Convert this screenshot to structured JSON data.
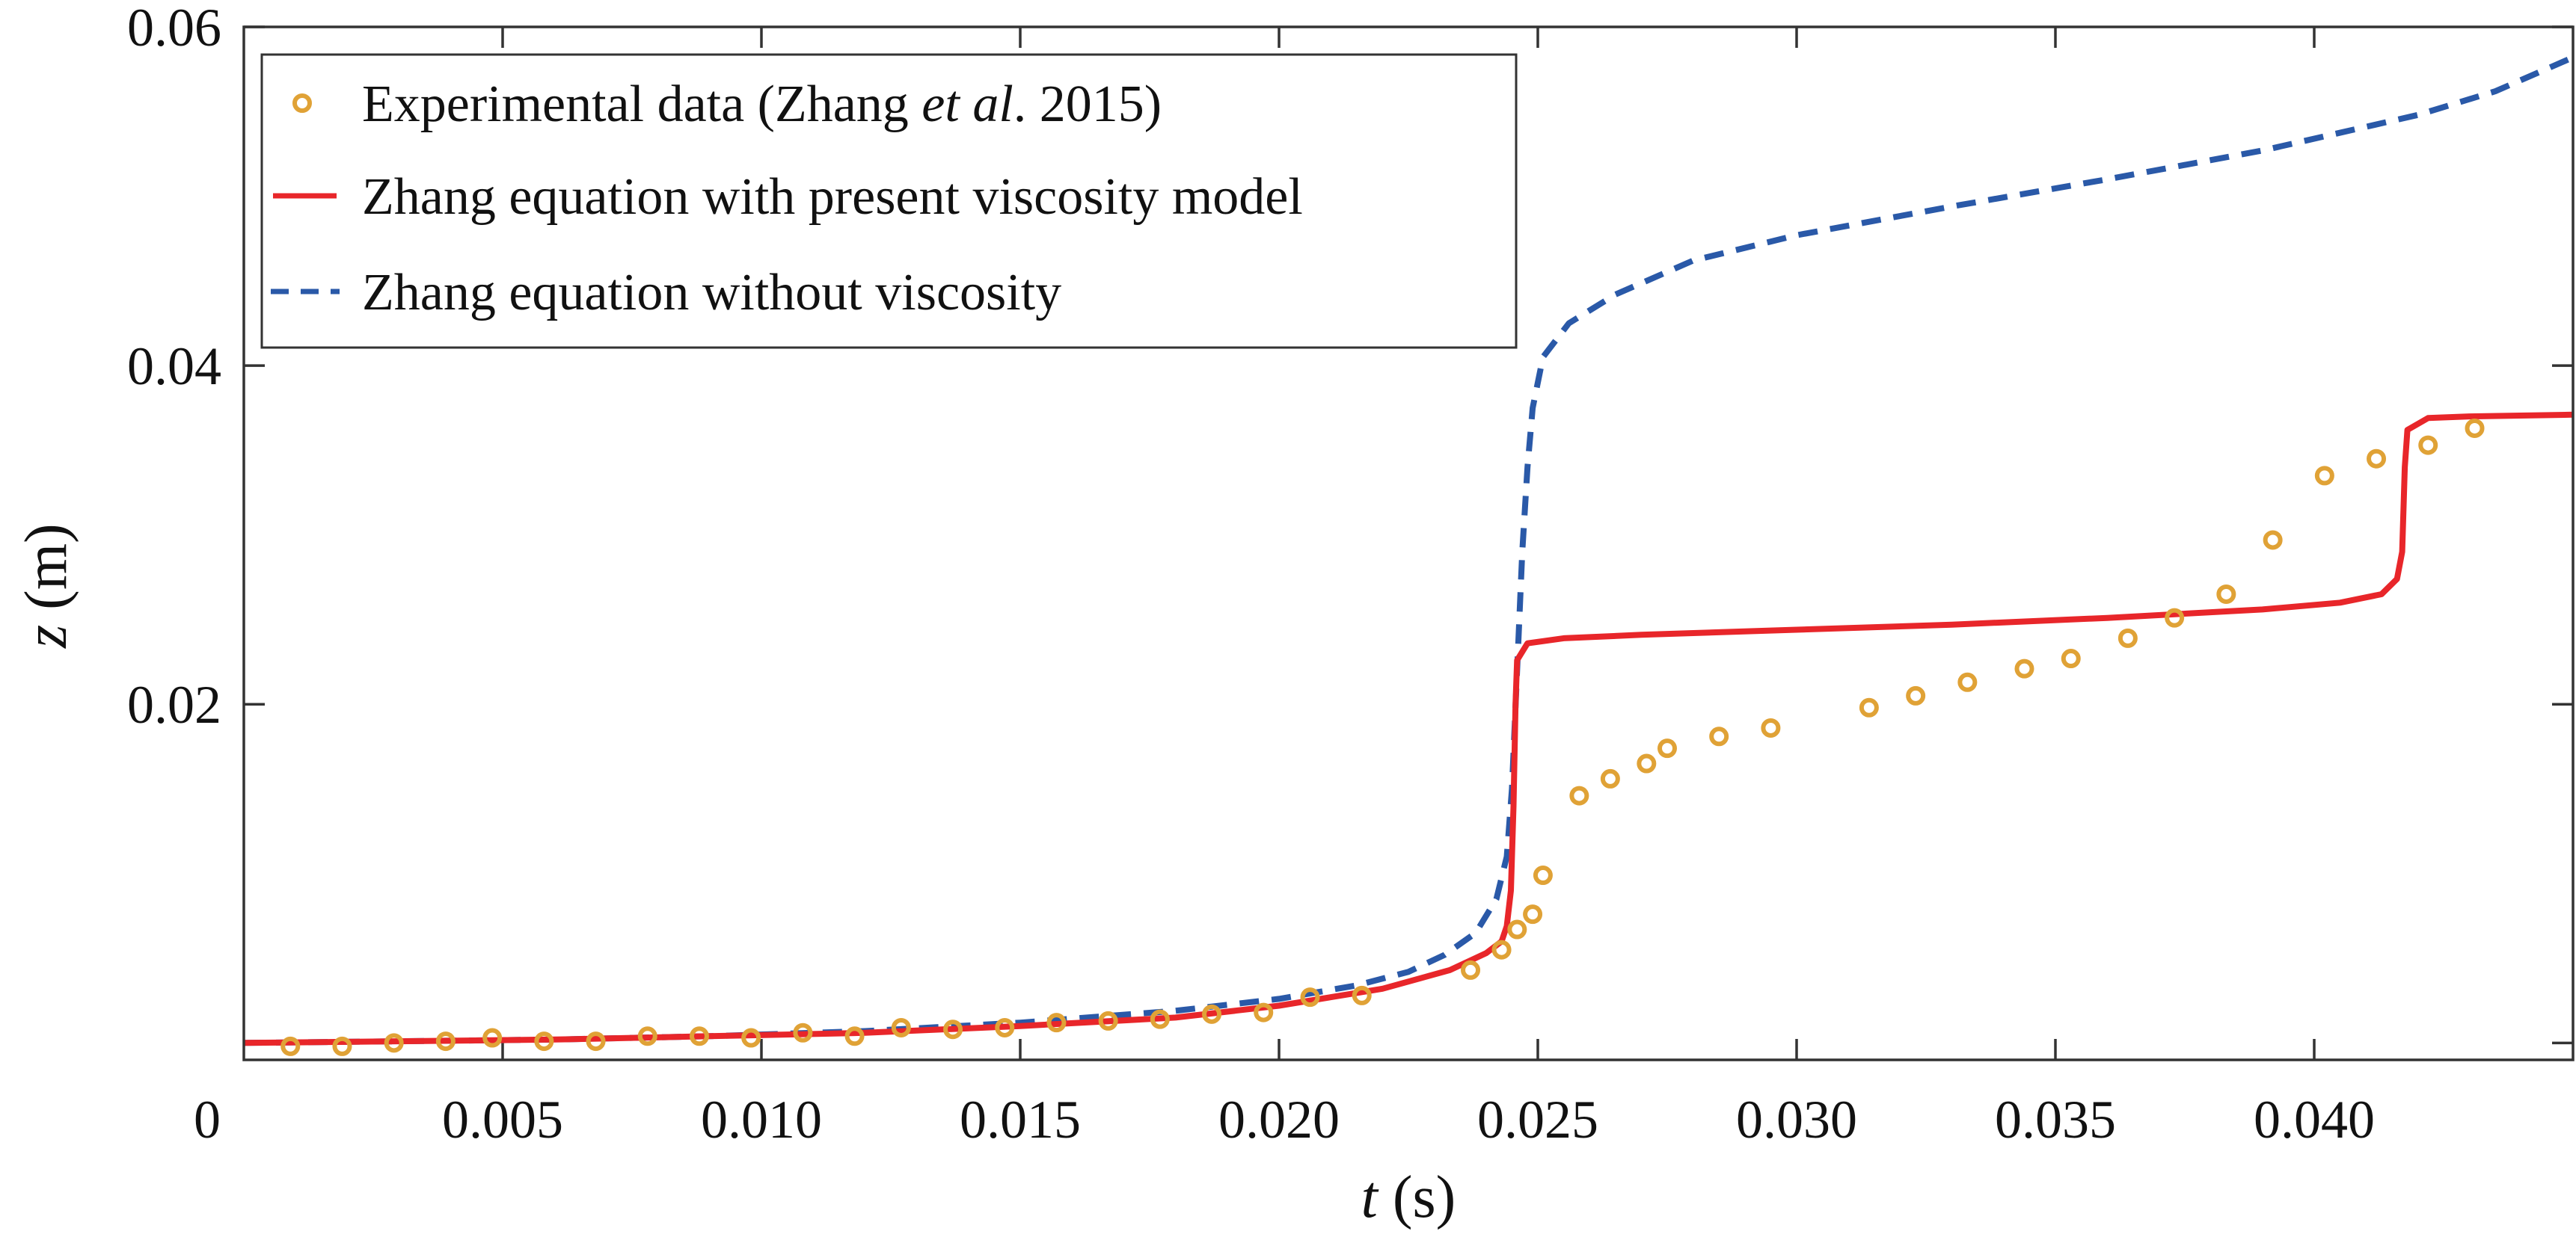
{
  "chart_data": {
    "type": "line",
    "xlabel": {
      "var": "t",
      "unit": " (s)"
    },
    "ylabel": {
      "var": "z",
      "unit": " (m)"
    },
    "xlim": [
      0,
      0.045
    ],
    "ylim": [
      -0.001,
      0.06
    ],
    "x_ticks": [
      0,
      0.005,
      0.01,
      0.015,
      0.02,
      0.025,
      0.03,
      0.035,
      0.04
    ],
    "x_tick_labels": [
      "0",
      "0.005",
      "0.010",
      "0.015",
      "0.020",
      "0.025",
      "0.030",
      "0.035",
      "0.040"
    ],
    "y_ticks": [
      0.02,
      0.04,
      0.06
    ],
    "y_tick_labels": [
      "0.02",
      "0.04",
      "0.06"
    ],
    "grid": false,
    "legend_position": "top-left",
    "legend": [
      {
        "text": "Experimental data (Zhang ",
        "italic": "et al",
        "after": ". 2015)",
        "series": "experimental"
      },
      {
        "text": "Zhang equation with present viscosity model",
        "series": "viscous"
      },
      {
        "text": "Zhang equation without viscosity",
        "series": "inviscid"
      }
    ],
    "colors": {
      "experimental": "#E0A236",
      "viscous": "#E8262A",
      "inviscid": "#2A59A8"
    },
    "series": [
      {
        "id": "experimental",
        "style": "markers",
        "points": [
          [
            0.0009,
            -0.0002
          ],
          [
            0.0019,
            -0.0002
          ],
          [
            0.0029,
            0.0
          ],
          [
            0.0039,
            0.0001
          ],
          [
            0.0048,
            0.0003
          ],
          [
            0.0058,
            0.0001
          ],
          [
            0.0068,
            0.0001
          ],
          [
            0.0078,
            0.0004
          ],
          [
            0.0088,
            0.0004
          ],
          [
            0.0098,
            0.0003
          ],
          [
            0.0108,
            0.0006
          ],
          [
            0.0118,
            0.0004
          ],
          [
            0.0127,
            0.0009
          ],
          [
            0.0137,
            0.0008
          ],
          [
            0.0147,
            0.0009
          ],
          [
            0.0157,
            0.0012
          ],
          [
            0.0167,
            0.0013
          ],
          [
            0.0177,
            0.0014
          ],
          [
            0.0187,
            0.0017
          ],
          [
            0.0197,
            0.0018
          ],
          [
            0.0206,
            0.0027
          ],
          [
            0.0216,
            0.0028
          ],
          [
            0.0237,
            0.0043
          ],
          [
            0.0243,
            0.0055
          ],
          [
            0.0246,
            0.0067
          ],
          [
            0.0249,
            0.0076
          ],
          [
            0.0251,
            0.0099
          ],
          [
            0.0258,
            0.0146
          ],
          [
            0.0264,
            0.0156
          ],
          [
            0.0271,
            0.0165
          ],
          [
            0.0275,
            0.0174
          ],
          [
            0.0285,
            0.0181
          ],
          [
            0.0295,
            0.0186
          ],
          [
            0.0314,
            0.0198
          ],
          [
            0.0323,
            0.0205
          ],
          [
            0.0333,
            0.0213
          ],
          [
            0.0344,
            0.0221
          ],
          [
            0.0353,
            0.0227
          ],
          [
            0.0364,
            0.0239
          ],
          [
            0.0373,
            0.0251
          ],
          [
            0.0383,
            0.0265
          ],
          [
            0.0392,
            0.0297
          ],
          [
            0.0402,
            0.0335
          ],
          [
            0.0412,
            0.0345
          ],
          [
            0.0422,
            0.0353
          ],
          [
            0.0431,
            0.0363
          ]
        ]
      },
      {
        "id": "viscous",
        "style": "solid",
        "points": [
          [
            0.0,
            0.0
          ],
          [
            0.003,
            0.0001
          ],
          [
            0.006,
            0.0002
          ],
          [
            0.009,
            0.0004
          ],
          [
            0.012,
            0.0006
          ],
          [
            0.015,
            0.001
          ],
          [
            0.018,
            0.0015
          ],
          [
            0.02,
            0.0022
          ],
          [
            0.022,
            0.0032
          ],
          [
            0.0233,
            0.0043
          ],
          [
            0.024,
            0.0053
          ],
          [
            0.0243,
            0.006
          ],
          [
            0.0244,
            0.0069
          ],
          [
            0.02448,
            0.009
          ],
          [
            0.02453,
            0.014
          ],
          [
            0.02457,
            0.02
          ],
          [
            0.0246,
            0.0226
          ],
          [
            0.0248,
            0.0236
          ],
          [
            0.0255,
            0.0239
          ],
          [
            0.027,
            0.0241
          ],
          [
            0.03,
            0.0244
          ],
          [
            0.033,
            0.0247
          ],
          [
            0.036,
            0.0251
          ],
          [
            0.039,
            0.0256
          ],
          [
            0.0405,
            0.026
          ],
          [
            0.0413,
            0.0265
          ],
          [
            0.0416,
            0.0274
          ],
          [
            0.0417,
            0.029
          ],
          [
            0.04175,
            0.034
          ],
          [
            0.0418,
            0.0362
          ],
          [
            0.0422,
            0.0369
          ],
          [
            0.043,
            0.037
          ],
          [
            0.045,
            0.0371
          ]
        ]
      },
      {
        "id": "inviscid",
        "style": "dashed",
        "points": [
          [
            0.0,
            0.0
          ],
          [
            0.003,
            0.0001
          ],
          [
            0.006,
            0.0002
          ],
          [
            0.009,
            0.0004
          ],
          [
            0.012,
            0.0007
          ],
          [
            0.015,
            0.0012
          ],
          [
            0.018,
            0.0019
          ],
          [
            0.02,
            0.0026
          ],
          [
            0.0215,
            0.0034
          ],
          [
            0.0225,
            0.0042
          ],
          [
            0.0232,
            0.0052
          ],
          [
            0.0238,
            0.0065
          ],
          [
            0.0242,
            0.0085
          ],
          [
            0.0244,
            0.011
          ],
          [
            0.0245,
            0.015
          ],
          [
            0.0246,
            0.022
          ],
          [
            0.0247,
            0.029
          ],
          [
            0.0248,
            0.034
          ],
          [
            0.0249,
            0.0375
          ],
          [
            0.0251,
            0.0405
          ],
          [
            0.0256,
            0.0425
          ],
          [
            0.0265,
            0.0442
          ],
          [
            0.028,
            0.0462
          ],
          [
            0.03,
            0.0477
          ],
          [
            0.033,
            0.0494
          ],
          [
            0.036,
            0.051
          ],
          [
            0.039,
            0.0527
          ],
          [
            0.042,
            0.0548
          ],
          [
            0.0435,
            0.0562
          ],
          [
            0.045,
            0.0582
          ]
        ]
      }
    ]
  }
}
